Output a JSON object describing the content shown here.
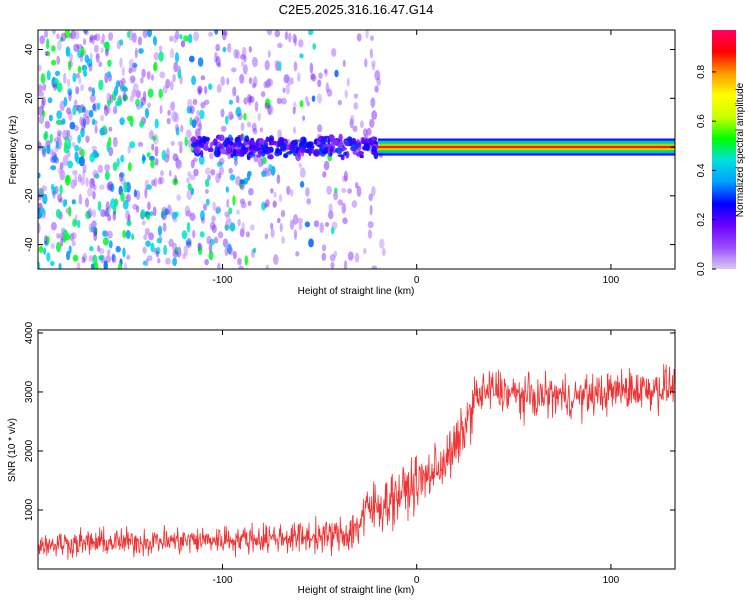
{
  "figure": {
    "title": "C2E5.2025.316.16.47.G14"
  },
  "colors": {
    "signal": "#f03232",
    "colorbar_stops": [
      "#d9c8f2",
      "#9a4dff",
      "#6a00ff",
      "#0000ff",
      "#00a0ff",
      "#00e0e0",
      "#00ff00",
      "#ccff00",
      "#ffff00",
      "#ff9900",
      "#ff0000",
      "#ff0066"
    ]
  },
  "chart_data": [
    {
      "type": "heatmap",
      "name": "spectrogram",
      "xlabel": "Height of straight line (km)",
      "ylabel": "Frequency (Hz)",
      "xlim": [
        -195,
        133
      ],
      "ylim": [
        -50,
        48
      ],
      "xticks": [
        -100,
        0,
        100
      ],
      "xtick_labels": [
        "-100",
        "0",
        "100"
      ],
      "yticks": [
        -40,
        -20,
        0,
        20,
        40
      ],
      "ytick_labels": [
        "-40",
        "-20",
        "0",
        "20",
        "40"
      ],
      "colorbar": {
        "label": "Normalized spectral amplitude",
        "range": [
          0,
          0.97
        ],
        "ticks": [
          0,
          0.2,
          0.4,
          0.6,
          0.8
        ],
        "tick_labels": [
          "0.0",
          "0.2",
          "0.4",
          "0.6",
          "0.8"
        ]
      },
      "features": [
        {
          "x_range": [
            -195,
            -30
          ],
          "freq_range": [
            -50,
            48
          ],
          "amplitude": 0.05,
          "description": "broadband noise"
        },
        {
          "x_range": [
            -115,
            -20
          ],
          "freq_range": [
            -5,
            5
          ],
          "amplitude": 0.25,
          "description": "emerging signal near 0 Hz"
        },
        {
          "x_range": [
            -20,
            133
          ],
          "freq_range": [
            -1,
            1
          ],
          "amplitude": 0.9,
          "description": "strong narrow line at 0 Hz"
        }
      ]
    },
    {
      "type": "line",
      "name": "snr",
      "xlabel": "Height of straight line (km)",
      "ylabel": "SNR (10 * v/v)",
      "xlim": [
        -195,
        133
      ],
      "ylim": [
        0,
        4050
      ],
      "xticks": [
        -100,
        0,
        100
      ],
      "xtick_labels": [
        "-100",
        "0",
        "100"
      ],
      "yticks": [
        1000,
        2000,
        3000,
        4000
      ],
      "ytick_labels": [
        "1000",
        "2000",
        "3000",
        "4000"
      ],
      "series": [
        {
          "name": "SNR",
          "x": [
            -195,
            -170,
            -145,
            -120,
            -100,
            -80,
            -60,
            -45,
            -35,
            -30,
            -25,
            -20,
            -15,
            -10,
            -5,
            0,
            5,
            10,
            15,
            20,
            25,
            30,
            40,
            50,
            60,
            70,
            80,
            90,
            100,
            110,
            120,
            133
          ],
          "mean": [
            420,
            440,
            460,
            480,
            500,
            520,
            540,
            560,
            600,
            750,
            1000,
            1050,
            1150,
            1250,
            1350,
            1450,
            1550,
            1700,
            1850,
            2050,
            2400,
            2900,
            3050,
            2950,
            2900,
            2950,
            2900,
            2950,
            3000,
            3050,
            3050,
            3100
          ],
          "spread": [
            250,
            260,
            260,
            270,
            270,
            280,
            300,
            320,
            380,
            500,
            550,
            550,
            500,
            500,
            500,
            500,
            500,
            500,
            500,
            500,
            500,
            450,
            420,
            400,
            400,
            400,
            400,
            400,
            400,
            400,
            420,
            450
          ]
        }
      ]
    }
  ]
}
